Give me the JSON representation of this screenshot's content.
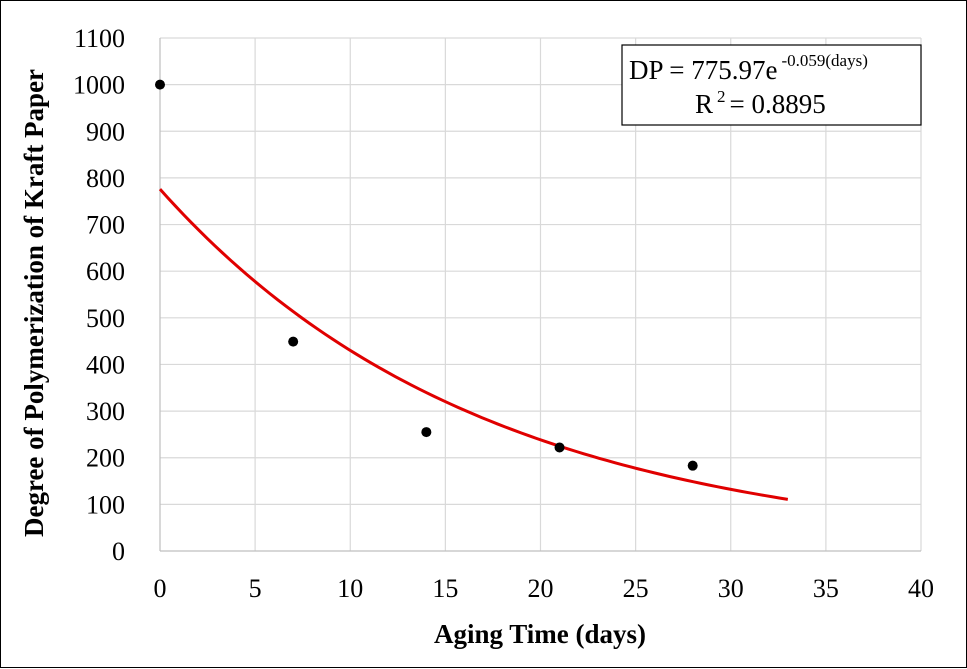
{
  "chart_data": {
    "type": "scatter",
    "title": "",
    "xlabel": "Aging Time (days)",
    "ylabel": "Degree of Polymerization of Kraft Paper",
    "xlim": [
      0,
      40
    ],
    "ylim": [
      0,
      1100
    ],
    "xticks": [
      0,
      5,
      10,
      15,
      20,
      25,
      30,
      35,
      40
    ],
    "yticks": [
      0,
      100,
      200,
      300,
      400,
      500,
      600,
      700,
      800,
      900,
      1000,
      1100
    ],
    "grid": true,
    "legend": "none",
    "series": [
      {
        "x": [
          0,
          7,
          14,
          21,
          28
        ],
        "values": [
          1000,
          449,
          255,
          222,
          183
        ],
        "color": "#000000",
        "marker": "circle"
      }
    ],
    "trendline": {
      "type": "exponential",
      "a": 775.97,
      "b": -0.059,
      "x_range": [
        0,
        33
      ],
      "color": "#e00000"
    },
    "annotation": {
      "equation_prefix": "DP = 775.97e",
      "equation_exponent": "-0.059(days)",
      "r2_prefix": "R",
      "r2_exponent": "2",
      "r2_value": " = 0.8895"
    }
  }
}
